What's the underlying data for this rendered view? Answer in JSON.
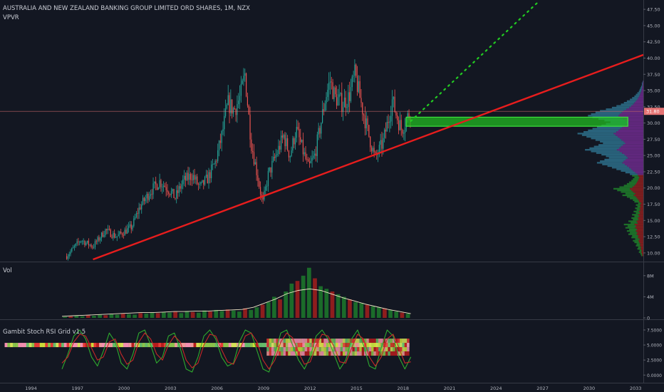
{
  "header": {
    "title": "AUSTRALIA AND NEW ZEALAND BANKING GROUP LIMITED ORD SHARES, 1M, NZX",
    "indicator": "VPVR"
  },
  "volume_pane": {
    "label": "Vol"
  },
  "stoch_pane": {
    "label": "Gambit Stoch RSI Grid v1.5"
  },
  "colors": {
    "background": "#131722",
    "up": "#26a69a",
    "down": "#ef5350",
    "trendline": "#e81d1d",
    "projection": "#22cc22",
    "zone": "#22bb22",
    "price_line": "#e57373",
    "stoch_k": "#2eaa2e",
    "stoch_d": "#c62828",
    "volume_ma": "#f0e6c8"
  },
  "chart_data": [
    {
      "type": "candlestick",
      "pane": "price",
      "title": "AUSTRALIA AND NEW ZEALAND BANKING GROUP LIMITED ORD SHARES, 1M, NZX",
      "y_range": [
        9.0,
        48.5
      ],
      "y_ticks": [
        "10.00",
        "12.50",
        "15.00",
        "17.50",
        "20.00",
        "22.50",
        "25.00",
        "27.50",
        "30.00",
        "32.50",
        "35.00",
        "37.50",
        "40.00",
        "42.50",
        "45.00",
        "47.50"
      ],
      "x_range": [
        1992.0,
        2033.5
      ],
      "x_ticks": [
        {
          "year": 1994,
          "label": "1994"
        },
        {
          "year": 1997,
          "label": "1997"
        },
        {
          "year": 2000,
          "label": "2000"
        },
        {
          "year": 2003,
          "label": "2003"
        },
        {
          "year": 2006,
          "label": "2006"
        },
        {
          "year": 2009,
          "label": "2009"
        },
        {
          "year": 2012,
          "label": "2012"
        },
        {
          "year": 2015,
          "label": "2015"
        },
        {
          "year": 2018,
          "label": "2018"
        },
        {
          "year": 2021,
          "label": "2021"
        },
        {
          "year": 2024,
          "label": "2024"
        },
        {
          "year": 2027,
          "label": "2027"
        },
        {
          "year": 2030,
          "label": "2030"
        },
        {
          "year": 2033,
          "label": "2033"
        }
      ],
      "last_price": 31.8,
      "last_price_label": "31.80",
      "price_path": [
        [
          1996.3,
          9.5
        ],
        [
          1997.2,
          12.0
        ],
        [
          1998.0,
          11.0
        ],
        [
          1998.8,
          13.5
        ],
        [
          1999.5,
          12.5
        ],
        [
          2000.5,
          14.0
        ],
        [
          2001.0,
          17.0
        ],
        [
          2001.7,
          19.5
        ],
        [
          2002.3,
          21.0
        ],
        [
          2002.8,
          20.0
        ],
        [
          2003.3,
          18.5
        ],
        [
          2003.8,
          21.0
        ],
        [
          2004.4,
          22.0
        ],
        [
          2004.9,
          20.0
        ],
        [
          2005.4,
          21.5
        ],
        [
          2005.9,
          24.0
        ],
        [
          2006.3,
          28.0
        ],
        [
          2006.7,
          33.0
        ],
        [
          2007.1,
          32.0
        ],
        [
          2007.5,
          34.0
        ],
        [
          2007.8,
          37.5
        ],
        [
          2008.2,
          27.0
        ],
        [
          2008.6,
          22.0
        ],
        [
          2008.95,
          17.5
        ],
        [
          2009.3,
          22.0
        ],
        [
          2009.8,
          25.0
        ],
        [
          2010.3,
          28.0
        ],
        [
          2010.7,
          25.0
        ],
        [
          2011.1,
          29.0
        ],
        [
          2011.5,
          26.0
        ],
        [
          2011.9,
          23.0
        ],
        [
          2012.3,
          25.0
        ],
        [
          2012.7,
          30.0
        ],
        [
          2013.0,
          34.0
        ],
        [
          2013.3,
          36.5
        ],
        [
          2013.6,
          34.0
        ],
        [
          2014.1,
          33.0
        ],
        [
          2014.5,
          34.0
        ],
        [
          2014.9,
          37.5
        ],
        [
          2015.3,
          33.0
        ],
        [
          2015.8,
          28.0
        ],
        [
          2016.2,
          24.5
        ],
        [
          2016.7,
          27.0
        ],
        [
          2017.0,
          30.0
        ],
        [
          2017.3,
          33.5
        ],
        [
          2017.6,
          31.0
        ],
        [
          2017.9,
          29.0
        ],
        [
          2018.2,
          30.5
        ],
        [
          2018.5,
          31.8
        ]
      ],
      "volume_profile": {
        "bins_low": 9.5,
        "bin_size": 0.25,
        "lengths": [
          3,
          4,
          6,
          5,
          8,
          7,
          10,
          9,
          12,
          14,
          11,
          16,
          15,
          20,
          18,
          22,
          19,
          24,
          21,
          26,
          17,
          20,
          14,
          16,
          12,
          15,
          10,
          13,
          9,
          11,
          8,
          10,
          7,
          12,
          14,
          18,
          22,
          28,
          24,
          30,
          35,
          40,
          32,
          26,
          22,
          19,
          16,
          14,
          12,
          15,
          18,
          24,
          30,
          36,
          42,
          48,
          55,
          62,
          58,
          52,
          46,
          50,
          56,
          63,
          70,
          78,
          72,
          66,
          60,
          54,
          58,
          64,
          70,
          76,
          82,
          88,
          80,
          74,
          68,
          62,
          56,
          50,
          44,
          52,
          60,
          68,
          74,
          70,
          64,
          58,
          50,
          42,
          36,
          30,
          26,
          22,
          18,
          15,
          12,
          10,
          8,
          6,
          5,
          4,
          3,
          2,
          2,
          1
        ]
      }
    },
    {
      "type": "bar",
      "pane": "volume",
      "title": "Vol",
      "y_range": [
        0,
        10000000
      ],
      "y_ticks": [
        "0",
        "4M",
        "8M"
      ],
      "x_range": [
        1992.0,
        2033.5
      ],
      "values_M": [
        0.2,
        0.3,
        0.4,
        0.3,
        0.5,
        0.4,
        0.6,
        0.5,
        0.7,
        0.6,
        0.8,
        0.7,
        0.6,
        0.9,
        0.8,
        1.0,
        0.9,
        1.1,
        1.0,
        1.2,
        0.9,
        1.3,
        1.1,
        1.0,
        1.4,
        1.2,
        1.5,
        1.3,
        1.6,
        1.4,
        1.2,
        1.8,
        1.5,
        2.0,
        2.5,
        3.0,
        4.0,
        3.5,
        5.0,
        6.5,
        7.0,
        8.0,
        9.5,
        7.5,
        6.0,
        5.5,
        5.0,
        4.5,
        4.0,
        3.5,
        3.0,
        2.8,
        2.5,
        2.2,
        2.0,
        1.8,
        1.5,
        1.2,
        1.0,
        0.8
      ],
      "ma_M": [
        0.3,
        0.4,
        0.5,
        0.6,
        0.7,
        0.8,
        0.9,
        1.0,
        1.0,
        1.1,
        1.2,
        1.2,
        1.3,
        1.3,
        1.4,
        1.5,
        1.6,
        2.0,
        2.8,
        3.6,
        4.6,
        5.2,
        5.5,
        5.2,
        4.5,
        3.8,
        3.2,
        2.6,
        2.1,
        1.6,
        1.2,
        0.8
      ]
    },
    {
      "type": "line",
      "pane": "stoch-rsi",
      "title": "Gambit Stoch RSI Grid v1.5",
      "y_range": [
        -0.8,
        8.8
      ],
      "y_ticks": [
        "0.0000",
        "2.5000",
        "5.0000",
        "7.5000"
      ],
      "x_range": [
        1992.0,
        2033.5
      ],
      "series": [
        {
          "key": "k",
          "values": [
            1.0,
            3.5,
            6.5,
            7.5,
            6.0,
            3.0,
            1.5,
            4.0,
            7.0,
            5.5,
            2.0,
            1.0,
            3.5,
            7.0,
            7.5,
            5.0,
            2.0,
            3.0,
            6.5,
            7.0,
            4.5,
            1.0,
            0.5,
            3.0,
            6.5,
            7.5,
            6.0,
            3.0,
            1.5,
            2.0,
            5.5,
            7.5,
            7.0,
            4.0,
            1.0,
            0.5,
            3.5,
            7.0,
            7.5,
            5.0,
            2.5,
            1.0,
            3.0,
            6.5,
            7.5,
            6.0,
            3.5,
            1.0,
            2.5,
            6.0,
            7.5,
            5.0,
            1.5,
            1.0,
            4.5,
            7.5,
            6.5,
            3.0,
            1.0,
            3.0
          ]
        },
        {
          "key": "d",
          "values": [
            2.0,
            3.0,
            5.5,
            6.8,
            6.5,
            4.5,
            2.5,
            3.0,
            5.5,
            6.0,
            3.5,
            1.8,
            2.5,
            5.5,
            7.0,
            6.0,
            3.5,
            2.5,
            5.0,
            6.5,
            5.5,
            2.5,
            1.2,
            2.0,
            5.0,
            6.8,
            6.5,
            4.2,
            2.2,
            1.8,
            4.0,
            6.5,
            7.0,
            5.5,
            2.5,
            1.0,
            2.5,
            5.5,
            7.0,
            6.2,
            3.8,
            1.8,
            2.2,
            5.0,
            6.8,
            6.5,
            4.8,
            2.2,
            2.0,
            4.5,
            6.8,
            6.0,
            3.0,
            1.5,
            3.0,
            6.0,
            6.8,
            4.5,
            2.0,
            2.2
          ]
        }
      ],
      "band": {
        "y": 5.0,
        "x_start": 1992.3,
        "x_end": 2018.4
      }
    }
  ],
  "drawings": {
    "trendline": {
      "from": [
        1998.0,
        9.0
      ],
      "to": [
        2033.5,
        40.5
      ]
    },
    "projection": {
      "from": [
        2018.5,
        30.3
      ],
      "to": [
        2026.7,
        48.6
      ]
    },
    "support_zone": {
      "x_start": 2018.2,
      "x_end": 2032.5,
      "y_low": 29.5,
      "y_high": 30.9
    },
    "horizontal_line": {
      "y": 31.8
    }
  }
}
